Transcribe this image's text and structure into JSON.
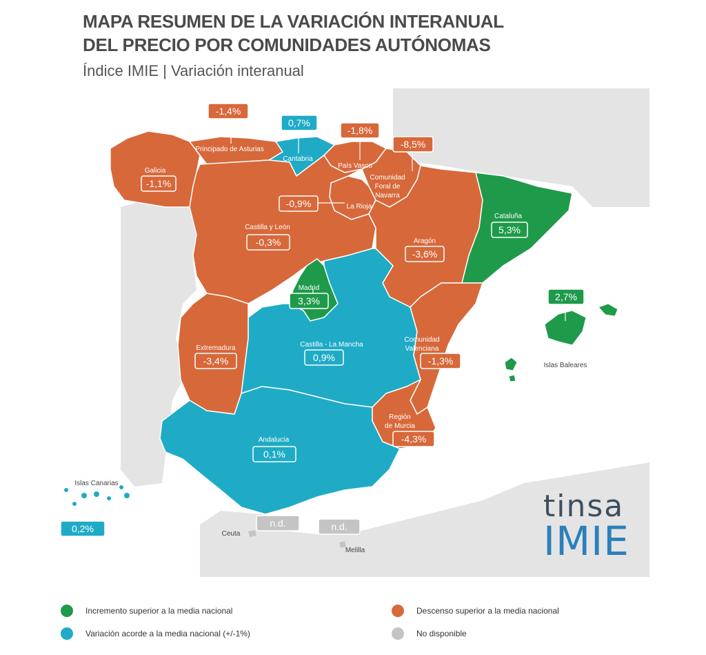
{
  "header": {
    "title_line1": "MAPA RESUMEN DE LA VARIACIÓN INTERANUAL",
    "title_line2": "DEL PRECIO POR COMUNIDADES AUTÓNOMAS",
    "subtitle": "Índice IMIE | Variación interanual"
  },
  "colors": {
    "green": "#1f9a4a",
    "orange": "#d7683a",
    "blue": "#1fabc6",
    "grey": "#c4c4c4",
    "background_land": "#e4e4e4",
    "sea": "#ffffff"
  },
  "regions": {
    "galicia": {
      "name": "Galicia",
      "value": "-1,1%"
    },
    "asturias": {
      "name": "Principado de Asturias",
      "value": "-1,4%"
    },
    "cantabria": {
      "name": "Cantabria",
      "value": "0,7%"
    },
    "pais_vasco": {
      "name": "País Vasco",
      "value": "-1,8%"
    },
    "navarra": {
      "name_l1": "Comunidad",
      "name_l2": "Foral de",
      "name_l3": "Navarra",
      "value": "-8,5%"
    },
    "la_rioja": {
      "name": "La Rioja",
      "value": "-0,9%"
    },
    "castilla_leon": {
      "name": "Castilla y León",
      "value": "-0,3%"
    },
    "aragon": {
      "name": "Aragón",
      "value": "-3,6%"
    },
    "cataluna": {
      "name": "Cataluña",
      "value": "5,3%"
    },
    "madrid": {
      "name": "Madrid",
      "value": "3,3%"
    },
    "extremadura": {
      "name": "Extremadura",
      "value": "-3,4%"
    },
    "castilla_la_mancha": {
      "name": "Castilla - La Mancha",
      "value": "0,9%"
    },
    "valenciana": {
      "name_l1": "Comunidad",
      "name_l2": "Valenciana",
      "value": "-1,3%"
    },
    "murcia": {
      "name_l1": "Región",
      "name_l2": "de Murcia",
      "value": "-4,3%"
    },
    "andalucia": {
      "name": "Andalucía",
      "value": "0,1%"
    },
    "baleares": {
      "name": "Islas Baleares",
      "value": "2,7%"
    },
    "canarias": {
      "name": "Islas Canarias",
      "value": "0,2%"
    },
    "ceuta": {
      "name": "Ceuta",
      "value": "n.d."
    },
    "melilla": {
      "name": "Melilla",
      "value": "n.d."
    }
  },
  "legend": [
    {
      "label": "Incremento superior a la media nacional",
      "color": "#1f9a4a"
    },
    {
      "label": "Descenso superior a la media nacional",
      "color": "#d7683a"
    },
    {
      "label": "Variación acorde a la media nacional (+/-1%)",
      "color": "#1fabc6"
    },
    {
      "label": "No disponible",
      "color": "#c4c4c4"
    }
  ],
  "logo": {
    "line1": "tinsa",
    "line2": "IMIE"
  }
}
